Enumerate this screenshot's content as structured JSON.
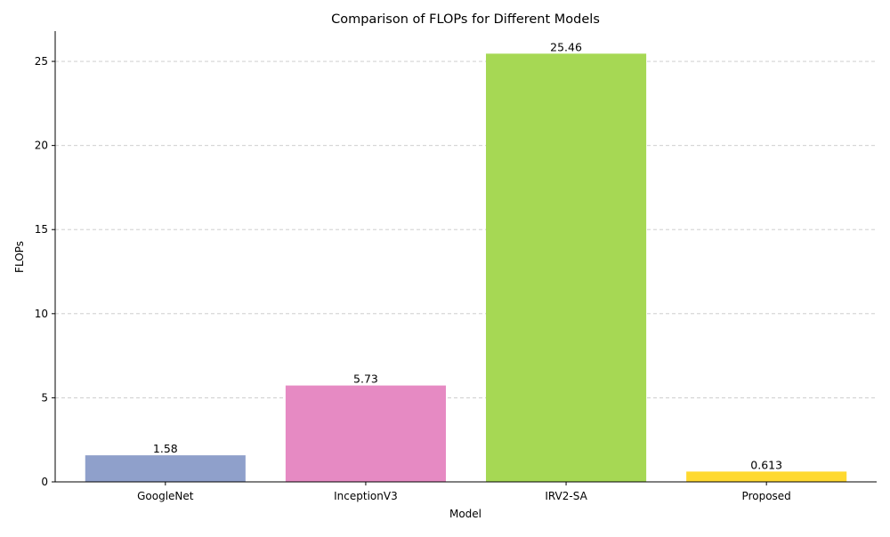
{
  "chart_data": {
    "type": "bar",
    "title": "Comparison of FLOPs for Different Models",
    "xlabel": "Model",
    "ylabel": "FLOPs",
    "categories": [
      "GoogleNet",
      "InceptionV3",
      "IRV2-SA",
      "Proposed"
    ],
    "values": [
      1.58,
      5.73,
      25.46,
      0.613
    ],
    "value_labels": [
      "1.58",
      "5.73",
      "25.46",
      "0.613"
    ],
    "colors": [
      "#8fa0cb",
      "#e68ac3",
      "#a6d854",
      "#ffd930"
    ],
    "ylim": [
      0,
      26.8
    ],
    "yticks": [
      0,
      5,
      10,
      15,
      20,
      25
    ],
    "grid": {
      "y": true,
      "x": false,
      "style": "dashed",
      "color": "#c8c8c8"
    },
    "legend": "none"
  }
}
